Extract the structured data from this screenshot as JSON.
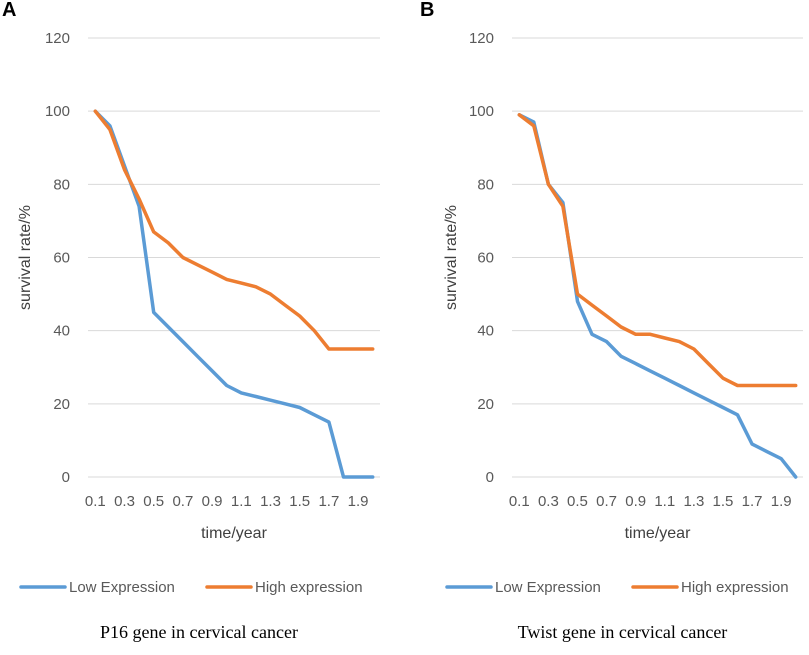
{
  "chart_data": [
    {
      "type": "line",
      "panel_label": "A",
      "caption": "P16 gene in cervical cancer",
      "xlabel": "time/year",
      "ylabel": "survival rate/%",
      "ylim": [
        0,
        120
      ],
      "yticks": [
        0,
        20,
        40,
        60,
        80,
        100,
        120
      ],
      "grid": true,
      "legend_position": "bottom",
      "x": [
        0.1,
        0.2,
        0.3,
        0.4,
        0.5,
        0.6,
        0.7,
        0.8,
        0.9,
        1.0,
        1.1,
        1.2,
        1.3,
        1.4,
        1.5,
        1.6,
        1.7,
        1.8,
        1.9,
        2.0
      ],
      "xtick_labels": [
        "0.1",
        "",
        "0.3",
        "",
        "0.5",
        "",
        "0.7",
        "",
        "0.9",
        "",
        "1.1",
        "",
        "1.3",
        "",
        "1.5",
        "",
        "1.7",
        "",
        "1.9",
        ""
      ],
      "series": [
        {
          "name": "Low Expression",
          "color": "#5b9bd5",
          "values": [
            100,
            96,
            85,
            74,
            45,
            41,
            37,
            33,
            29,
            25,
            23,
            22,
            21,
            20,
            19,
            17,
            15,
            0,
            0,
            0
          ]
        },
        {
          "name": "High expression",
          "color": "#ed7d31",
          "values": [
            100,
            95,
            84,
            76,
            67,
            64,
            60,
            58,
            56,
            54,
            53,
            52,
            50,
            47,
            44,
            40,
            35,
            35,
            35,
            35
          ]
        }
      ]
    },
    {
      "type": "line",
      "panel_label": "B",
      "caption": "Twist gene in cervical cancer",
      "xlabel": "time/year",
      "ylabel": "survival rate/%",
      "ylim": [
        0,
        120
      ],
      "yticks": [
        0,
        20,
        40,
        60,
        80,
        100,
        120
      ],
      "grid": true,
      "legend_position": "bottom",
      "x": [
        0.1,
        0.2,
        0.3,
        0.4,
        0.5,
        0.6,
        0.7,
        0.8,
        0.9,
        1.0,
        1.1,
        1.2,
        1.3,
        1.4,
        1.5,
        1.6,
        1.7,
        1.8,
        1.9,
        2.0
      ],
      "xtick_labels": [
        "0.1",
        "",
        "0.3",
        "",
        "0.5",
        "",
        "0.7",
        "",
        "0.9",
        "",
        "1.1",
        "",
        "1.3",
        "",
        "1.5",
        "",
        "1.7",
        "",
        "1.9",
        ""
      ],
      "series": [
        {
          "name": "Low Expression",
          "color": "#5b9bd5",
          "values": [
            99,
            97,
            80,
            75,
            48,
            39,
            37,
            33,
            31,
            29,
            27,
            25,
            23,
            21,
            19,
            17,
            9,
            7,
            5,
            0
          ]
        },
        {
          "name": "High expression",
          "color": "#ed7d31",
          "values": [
            99,
            96,
            80,
            74,
            50,
            47,
            44,
            41,
            39,
            39,
            38,
            37,
            35,
            31,
            27,
            25,
            25,
            25,
            25,
            25
          ]
        }
      ]
    }
  ]
}
